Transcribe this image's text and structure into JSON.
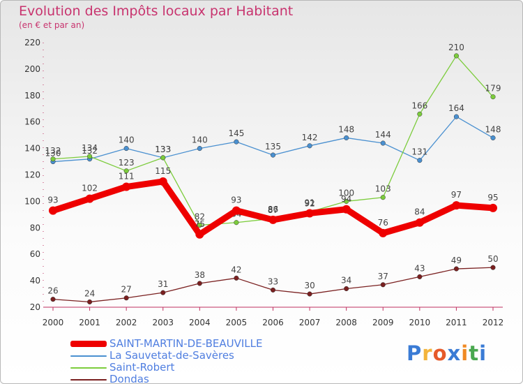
{
  "title": "Evolution des Impôts locaux par Habitant",
  "subtitle": "(en € et par an)",
  "logo": {
    "text": "Proxiti",
    "letters": [
      "P",
      "r",
      "o",
      "x",
      "i",
      "t",
      "i"
    ],
    "colors": [
      "#3a7bd5",
      "#f3b43c",
      "#e65a2a",
      "#3a7bd5",
      "#f08a24",
      "#49a84f",
      "#3a7bd5"
    ]
  },
  "chart_data": {
    "type": "line",
    "categories": [
      "2000",
      "2001",
      "2002",
      "2003",
      "2004",
      "2005",
      "2006",
      "2007",
      "2008",
      "2009",
      "2010",
      "2011",
      "2012"
    ],
    "ylim": [
      20,
      220
    ],
    "yticks": [
      20,
      40,
      60,
      80,
      100,
      120,
      140,
      160,
      180,
      200,
      220
    ],
    "grid": false,
    "legend_position": "bottom-left",
    "series": [
      {
        "name": "SAINT-MARTIN-DE-BEAUVILLE",
        "color": "#ee0000",
        "values": [
          93,
          102,
          111,
          115,
          75,
          93,
          86,
          91,
          94,
          76,
          84,
          97,
          95
        ],
        "labels": [
          "93",
          "102",
          "111",
          "115",
          "75",
          "93",
          "86",
          "91",
          "94",
          "76",
          "84",
          "97",
          "95"
        ]
      },
      {
        "name": "La Sauvetat-de-Savères",
        "color": "#4a90d0",
        "values": [
          130,
          132,
          140,
          133,
          140,
          145,
          135,
          142,
          148,
          144,
          131,
          164,
          148
        ],
        "labels": [
          "130",
          "132",
          "140",
          "133",
          "140",
          "145",
          "135",
          "142",
          "148",
          "144",
          "131",
          "164",
          "148"
        ]
      },
      {
        "name": "Saint-Robert",
        "color": "#7ccc3c",
        "values": [
          132,
          134,
          123,
          133,
          82,
          84,
          87,
          92,
          100,
          103,
          166,
          210,
          179
        ],
        "labels": [
          "132",
          "134",
          "123",
          "133",
          "82",
          "84",
          "87",
          "92",
          "100",
          "103",
          "166",
          "210",
          "179"
        ]
      },
      {
        "name": "Dondas",
        "color": "#7a2020",
        "values": [
          26,
          24,
          27,
          31,
          38,
          42,
          33,
          30,
          34,
          37,
          43,
          49,
          50
        ],
        "labels": [
          "26",
          "24",
          "27",
          "31",
          "38",
          "42",
          "33",
          "30",
          "34",
          "37",
          "43",
          "49",
          "50"
        ]
      }
    ]
  }
}
